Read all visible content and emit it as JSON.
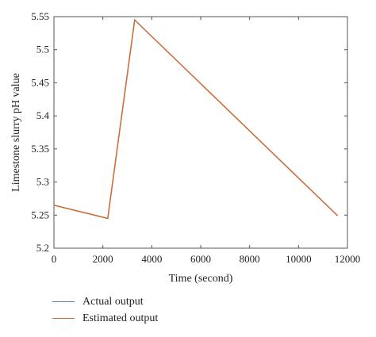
{
  "chart_data": {
    "type": "line",
    "xlabel": "Time (second)",
    "ylabel": "Limestone slurry pH value",
    "xlim": [
      0,
      12000
    ],
    "ylim": [
      5.2,
      5.55
    ],
    "xticks": [
      0,
      2000,
      4000,
      6000,
      8000,
      10000,
      12000
    ],
    "yticks": [
      5.2,
      5.25,
      5.3,
      5.35,
      5.4,
      5.45,
      5.5,
      5.55
    ],
    "xtick_labels": [
      "0",
      "2000",
      "4000",
      "6000",
      "8000",
      "10000",
      "12000"
    ],
    "ytick_labels": [
      "5.2",
      "5.25",
      "5.3",
      "5.35",
      "5.4",
      "5.45",
      "5.5",
      "5.55"
    ],
    "grid": false,
    "legend_position": "bottom-left, below plot",
    "series": [
      {
        "name": "Actual output",
        "color": "#4f7fb8",
        "x": [
          0,
          2200,
          3300,
          11600
        ],
        "y": [
          5.265,
          5.245,
          5.545,
          5.249
        ]
      },
      {
        "name": "Estimated output",
        "color": "#d96a2b",
        "x": [
          0,
          2200,
          3300,
          11600
        ],
        "y": [
          5.265,
          5.245,
          5.545,
          5.249
        ]
      }
    ]
  }
}
